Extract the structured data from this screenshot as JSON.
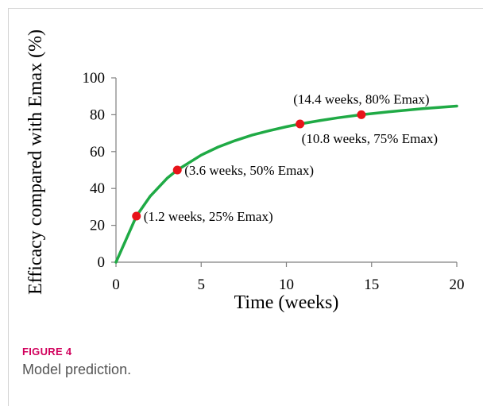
{
  "figure": {
    "label": "FIGURE 4",
    "caption": "Model prediction."
  },
  "chart_data": {
    "type": "line",
    "title": "",
    "xlabel": "Time (weeks)",
    "ylabel": "Efficacy compared with Emax (%)",
    "xlim": [
      0,
      20
    ],
    "ylim": [
      0,
      100
    ],
    "xticks": [
      0,
      5,
      10,
      15,
      20
    ],
    "yticks": [
      0,
      20,
      40,
      60,
      80,
      100
    ],
    "grid": false,
    "line_color": "#1faa45",
    "marker_color": "#e8141a",
    "series": [
      {
        "x": [
          0,
          0.6,
          1.2,
          2,
          3,
          3.6,
          5,
          6,
          7,
          8,
          9,
          10,
          10.8,
          12,
          13,
          14.4,
          16,
          18,
          20
        ],
        "y": [
          0,
          12.5,
          25,
          35.7,
          45.5,
          50,
          58.1,
          62.5,
          66,
          69,
          71.4,
          73.5,
          75,
          76.9,
          78.3,
          80,
          81.6,
          83.3,
          84.7
        ]
      }
    ],
    "points": [
      {
        "x": 1.2,
        "y": 25,
        "label": "(1.2 weeks, 25% Emax)"
      },
      {
        "x": 3.6,
        "y": 50,
        "label": "(3.6 weeks, 50% Emax)"
      },
      {
        "x": 10.8,
        "y": 75,
        "label": "(10.8 weeks, 75% Emax)"
      },
      {
        "x": 14.4,
        "y": 80,
        "label": "(14.4 weeks, 80% Emax)"
      }
    ]
  }
}
